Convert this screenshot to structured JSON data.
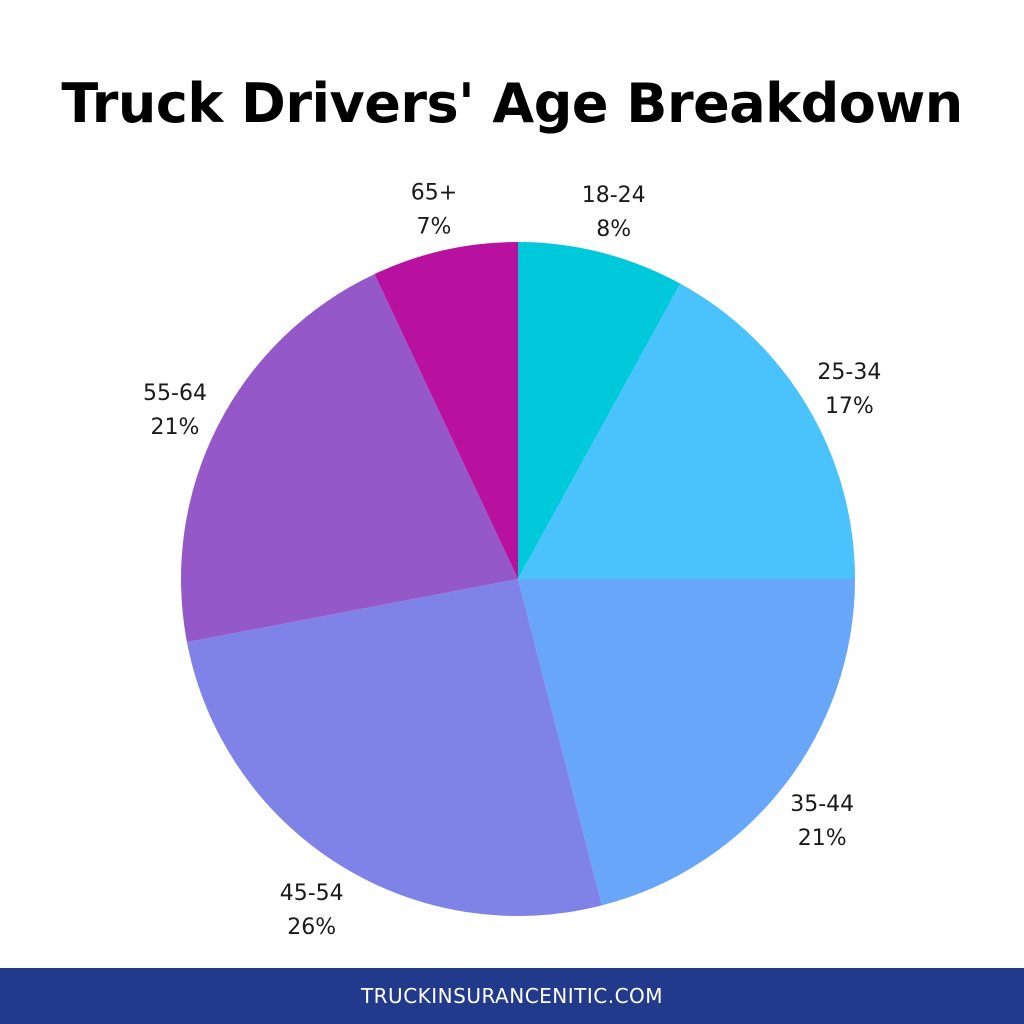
{
  "chart_data": {
    "type": "pie",
    "title": "Truck Drivers' Age Breakdown",
    "start_angle_deg": 0,
    "direction": "clockwise",
    "slices": [
      {
        "label": "18-24",
        "value": 8,
        "value_label": "8%",
        "color": "#00c9dc"
      },
      {
        "label": "25-34",
        "value": 17,
        "value_label": "17%",
        "color": "#4ac3fd"
      },
      {
        "label": "35-44",
        "value": 21,
        "value_label": "21%",
        "color": "#67a6f9"
      },
      {
        "label": "45-54",
        "value": 26,
        "value_label": "26%",
        "color": "#7f82e6"
      },
      {
        "label": "55-64",
        "value": 21,
        "value_label": "21%",
        "color": "#9558c9"
      },
      {
        "label": "65+",
        "value": 7,
        "value_label": "7%",
        "color": "#b9119f"
      }
    ]
  },
  "footer": {
    "text": "TRUCKINSURANCENITIC.COM",
    "background": "#223a8c"
  }
}
